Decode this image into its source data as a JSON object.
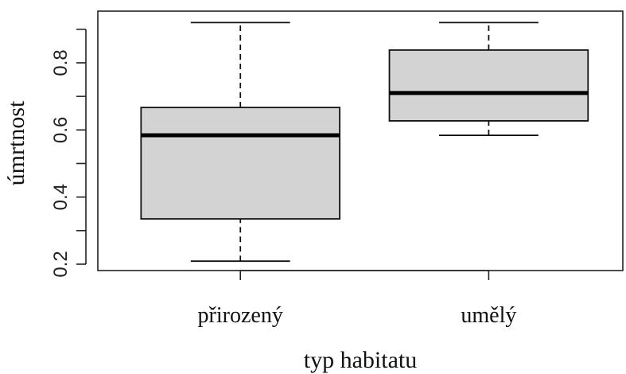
{
  "chart_data": {
    "type": "boxplot",
    "xlabel": "typ habitatu",
    "ylabel": "úmrtnost",
    "categories": [
      "přirozený",
      "umělý"
    ],
    "boxes": [
      {
        "min": 0.209,
        "q1": 0.335,
        "median": 0.584,
        "q3": 0.667,
        "max": 0.92
      },
      {
        "min": 0.584,
        "q1": 0.627,
        "median": 0.71,
        "q3": 0.838,
        "max": 0.92
      }
    ],
    "color": "#d3d3d3",
    "ylim": [
      0.181,
      0.954
    ],
    "yticks": [
      0.2,
      0.4,
      0.6,
      0.8
    ],
    "yminor_ticks": [
      0.3,
      0.5,
      0.7,
      0.9
    ]
  }
}
